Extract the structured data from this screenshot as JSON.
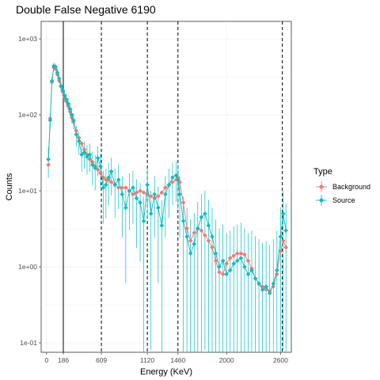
{
  "chart_data": {
    "type": "scatter",
    "title": "Double False Negative 6190",
    "xlabel": "Energy (KeV)",
    "ylabel": "Counts",
    "x_scale": "linear",
    "y_scale": "log10",
    "xlim": [
      -60,
      2720
    ],
    "ylim": [
      0.075,
      1700
    ],
    "x_ticks": [
      0,
      186,
      609,
      1120,
      1460,
      2000,
      2600
    ],
    "x_tick_labels": [
      "0",
      "186",
      "609",
      "1120",
      "1460",
      "2000",
      "2600"
    ],
    "y_ticks": [
      0.1,
      1,
      10,
      100,
      1000
    ],
    "y_tick_labels": [
      "1e-01",
      "1e+00",
      "1e+01",
      "1e+02",
      "1e+03"
    ],
    "vlines": [
      {
        "x": 186,
        "style": "solid"
      },
      {
        "x": 609,
        "style": "dashed"
      },
      {
        "x": 1120,
        "style": "dashed"
      },
      {
        "x": 1460,
        "style": "dashed"
      },
      {
        "x": 2620,
        "style": "dashed"
      }
    ],
    "grid": true,
    "legend": {
      "title": "Type",
      "position": "right"
    },
    "colors": {
      "Background": "#F8766D",
      "Source": "#00BFC4"
    },
    "series": [
      {
        "name": "Background",
        "x": [
          20,
          40,
          60,
          80,
          100,
          120,
          140,
          160,
          180,
          200,
          220,
          240,
          260,
          280,
          300,
          330,
          360,
          390,
          420,
          450,
          480,
          510,
          540,
          570,
          600,
          630,
          660,
          690,
          720,
          760,
          800,
          840,
          880,
          920,
          960,
          1000,
          1040,
          1080,
          1120,
          1160,
          1200,
          1240,
          1280,
          1320,
          1360,
          1400,
          1440,
          1460,
          1480,
          1520,
          1560,
          1600,
          1640,
          1680,
          1720,
          1760,
          1800,
          1840,
          1880,
          1920,
          1960,
          2000,
          2040,
          2080,
          2120,
          2160,
          2200,
          2240,
          2280,
          2320,
          2360,
          2400,
          2440,
          2480,
          2520,
          2560,
          2600,
          2630,
          2660
        ],
        "y": [
          22,
          90,
          270,
          420,
          400,
          340,
          280,
          235,
          200,
          170,
          150,
          130,
          110,
          92,
          80,
          62,
          50,
          42,
          35,
          30,
          26,
          24,
          21,
          19,
          17,
          15,
          14,
          14,
          13,
          12,
          11,
          11,
          11,
          10,
          9,
          9.5,
          10,
          9.5,
          9,
          8.5,
          8,
          8.5,
          9.5,
          11,
          12,
          13,
          14,
          15,
          13,
          7,
          3.2,
          2.2,
          2.8,
          3.2,
          3,
          2.6,
          2.2,
          1.8,
          1.2,
          0.85,
          0.8,
          1.1,
          1.3,
          1.4,
          1.5,
          1.5,
          1.45,
          1.2,
          0.95,
          0.7,
          0.6,
          0.55,
          0.5,
          0.48,
          0.55,
          0.8,
          1.6,
          2.2,
          1.8
        ]
      },
      {
        "name": "Source",
        "x": [
          20,
          40,
          60,
          80,
          100,
          120,
          140,
          160,
          180,
          200,
          220,
          240,
          260,
          280,
          300,
          330,
          360,
          390,
          420,
          450,
          480,
          510,
          540,
          570,
          600,
          630,
          660,
          690,
          720,
          760,
          800,
          840,
          880,
          920,
          960,
          1000,
          1040,
          1080,
          1120,
          1160,
          1200,
          1240,
          1280,
          1320,
          1360,
          1400,
          1440,
          1460,
          1480,
          1520,
          1560,
          1600,
          1640,
          1680,
          1720,
          1760,
          1800,
          1840,
          1880,
          1920,
          1960,
          2000,
          2040,
          2080,
          2120,
          2160,
          2200,
          2240,
          2280,
          2320,
          2360,
          2400,
          2440,
          2480,
          2520,
          2560,
          2600,
          2630,
          2660
        ],
        "y": [
          26,
          85,
          280,
          440,
          430,
          360,
          300,
          240,
          210,
          180,
          160,
          140,
          120,
          100,
          85,
          55,
          45,
          30,
          32,
          28,
          30,
          22,
          20,
          27,
          21,
          11,
          12,
          15,
          18,
          12,
          14,
          9,
          6,
          10,
          11,
          8,
          7,
          4,
          12,
          5,
          9,
          6,
          3.5,
          9,
          12,
          15,
          16,
          14,
          9,
          4,
          2.5,
          1.5,
          2,
          3.2,
          4.5,
          5,
          3.5,
          2.5,
          1.5,
          1,
          1.2,
          0.8,
          0.9,
          1.1,
          1.2,
          1.3,
          1,
          0.8,
          0.9,
          0.7,
          0.6,
          0.5,
          0.55,
          0.45,
          0.6,
          0.9,
          2.5,
          5,
          3
        ]
      }
    ]
  }
}
